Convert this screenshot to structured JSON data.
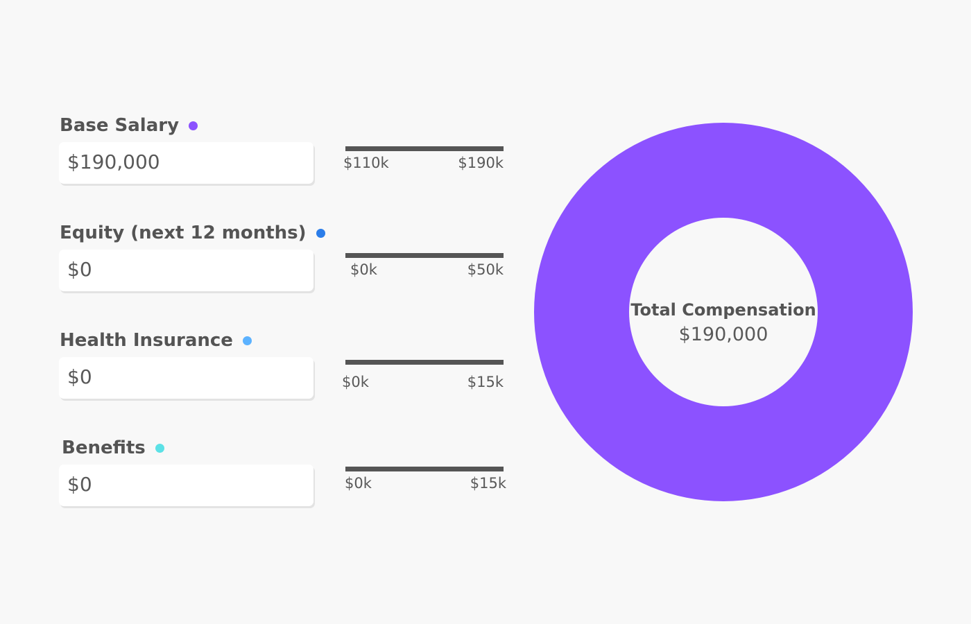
{
  "fields": [
    {
      "label": "Base Salary",
      "value": "$190,000",
      "dot_color": "#8c52ff",
      "range_min": "$110k",
      "range_max": "$190k"
    },
    {
      "label": "Equity (next 12 months)",
      "value": "$0",
      "dot_color": "#2b7de9",
      "range_min": "$0k",
      "range_max": "$50k"
    },
    {
      "label": "Health Insurance",
      "value": "$0",
      "dot_color": "#5cb2ff",
      "range_min": "$0k",
      "range_max": "$15k"
    },
    {
      "label": "Benefits",
      "value": "$0",
      "dot_color": "#5ce1e6",
      "range_min": "$0k",
      "range_max": "$15k"
    }
  ],
  "total": {
    "label": "Total Compensation",
    "value": "$190,000"
  },
  "chart_data": {
    "type": "pie",
    "categories": [
      "Base Salary",
      "Equity (next 12 months)",
      "Health Insurance",
      "Benefits"
    ],
    "values": [
      190000,
      0,
      0,
      0
    ],
    "colors": [
      "#8c52ff",
      "#2b7de9",
      "#5cb2ff",
      "#5ce1e6"
    ]
  }
}
